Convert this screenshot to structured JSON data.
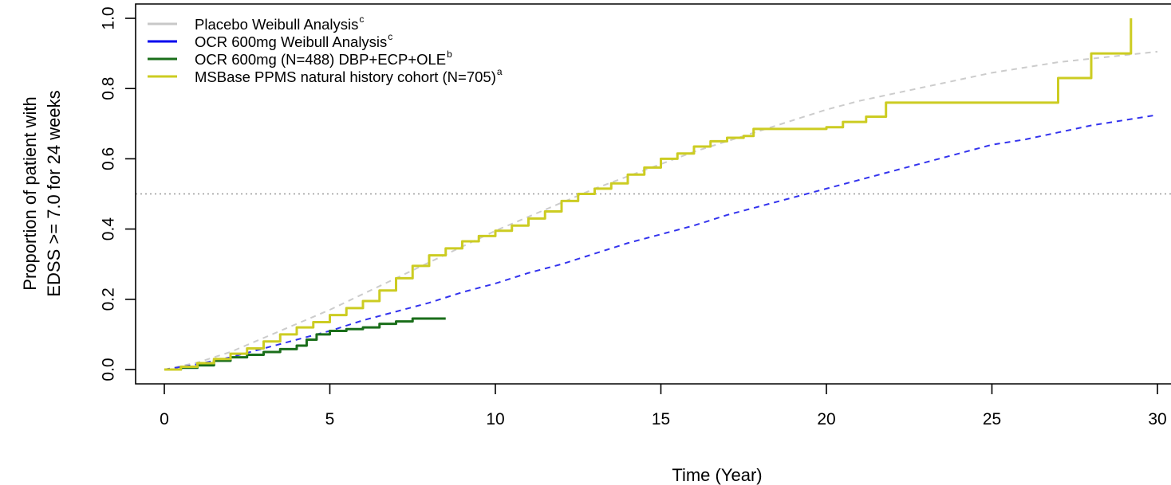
{
  "chart_data": {
    "type": "line",
    "title": "",
    "xlabel": "Time (Year)",
    "ylabel_lines": [
      "Proportion of patient with",
      "EDSS >= 7.0 for 24 weeks"
    ],
    "xlim": [
      0,
      30
    ],
    "ylim": [
      0,
      1
    ],
    "x_ticks": [
      0,
      5,
      10,
      15,
      20,
      25,
      30
    ],
    "y_ticks": [
      0.0,
      0.2,
      0.4,
      0.6,
      0.8,
      1.0
    ],
    "x_tick_labels": [
      "0",
      "5",
      "10",
      "15",
      "20",
      "25",
      "30"
    ],
    "y_tick_labels": [
      "0.0",
      "0.2",
      "0.4",
      "0.6",
      "0.8",
      "1.0"
    ],
    "grid": false,
    "legend_position": "top-left",
    "reference_line": {
      "y": 0.5,
      "style": "dotted",
      "color": "#999999"
    },
    "legend": [
      {
        "label": "Placebo Weibull Analysis",
        "sup": "c",
        "color": "#c8c8c8"
      },
      {
        "label": "OCR 600mg Weibull Analysis",
        "sup": "c",
        "color": "#0000ee"
      },
      {
        "label": "OCR 600mg (N=488) DBP+ECP+OLE",
        "sup": "b",
        "color": "#1a6e1a"
      },
      {
        "label": "MSBase PPMS natural history cohort (N=705)",
        "sup": "a",
        "color": "#cccc22"
      }
    ],
    "series": [
      {
        "name": "Placebo Weibull Analysis",
        "style": "dashed",
        "color": "#cccccc",
        "x": [
          0,
          1,
          2,
          3,
          4,
          5,
          6,
          7,
          8,
          9,
          10,
          11,
          12,
          13,
          14,
          15,
          16,
          17,
          18,
          19,
          20,
          21,
          22,
          23,
          24,
          25,
          26,
          27,
          28,
          29,
          30
        ],
        "y": [
          0.0,
          0.02,
          0.05,
          0.09,
          0.13,
          0.17,
          0.215,
          0.26,
          0.305,
          0.35,
          0.395,
          0.435,
          0.475,
          0.515,
          0.55,
          0.585,
          0.62,
          0.65,
          0.68,
          0.71,
          0.74,
          0.765,
          0.785,
          0.805,
          0.825,
          0.845,
          0.86,
          0.875,
          0.885,
          0.895,
          0.905
        ]
      },
      {
        "name": "OCR 600mg Weibull Analysis",
        "style": "dashed",
        "color": "#3333ee",
        "x": [
          0,
          1,
          2,
          3,
          4,
          5,
          6,
          7,
          8,
          9,
          10,
          11,
          12,
          13,
          14,
          15,
          16,
          17,
          18,
          19,
          20,
          21,
          22,
          23,
          24,
          25,
          26,
          27,
          28,
          29,
          30
        ],
        "y": [
          0.0,
          0.015,
          0.035,
          0.06,
          0.085,
          0.11,
          0.14,
          0.165,
          0.19,
          0.22,
          0.245,
          0.275,
          0.3,
          0.33,
          0.36,
          0.385,
          0.41,
          0.44,
          0.465,
          0.49,
          0.515,
          0.54,
          0.565,
          0.59,
          0.615,
          0.64,
          0.655,
          0.675,
          0.695,
          0.71,
          0.725
        ]
      },
      {
        "name": "OCR 600mg (N=488) DBP+ECP+OLE",
        "style": "step",
        "color": "#1a6e1a",
        "x": [
          0,
          0.5,
          1.0,
          1.5,
          2.0,
          2.5,
          3.0,
          3.5,
          4.0,
          4.3,
          4.6,
          5.0,
          5.5,
          6.0,
          6.5,
          7.0,
          7.5,
          8.0,
          8.5
        ],
        "y": [
          0.0,
          0.005,
          0.012,
          0.025,
          0.035,
          0.042,
          0.05,
          0.058,
          0.068,
          0.085,
          0.1,
          0.11,
          0.115,
          0.12,
          0.13,
          0.137,
          0.145,
          0.145,
          0.145
        ]
      },
      {
        "name": "MSBase PPMS natural history cohort (N=705)",
        "style": "step",
        "color": "#cccc22",
        "x": [
          0,
          0.5,
          1.0,
          1.5,
          2.0,
          2.5,
          3.0,
          3.5,
          4.0,
          4.5,
          5.0,
          5.5,
          6.0,
          6.5,
          7.0,
          7.5,
          8.0,
          8.5,
          9.0,
          9.5,
          10.0,
          10.5,
          11.0,
          11.5,
          12.0,
          12.5,
          13.0,
          13.5,
          14.0,
          14.5,
          15.0,
          15.5,
          16.0,
          16.5,
          17.0,
          17.5,
          17.8,
          18.5,
          19.0,
          20.0,
          20.5,
          21.2,
          21.6,
          21.8,
          22.5,
          24.0,
          26.0,
          27.0,
          28.0,
          29.2
        ],
        "y": [
          0.0,
          0.008,
          0.018,
          0.03,
          0.045,
          0.06,
          0.08,
          0.1,
          0.12,
          0.135,
          0.155,
          0.175,
          0.195,
          0.225,
          0.26,
          0.295,
          0.325,
          0.345,
          0.365,
          0.38,
          0.395,
          0.41,
          0.43,
          0.45,
          0.48,
          0.5,
          0.515,
          0.53,
          0.555,
          0.575,
          0.6,
          0.615,
          0.635,
          0.65,
          0.66,
          0.665,
          0.685,
          0.685,
          0.685,
          0.69,
          0.705,
          0.72,
          0.72,
          0.76,
          0.76,
          0.76,
          0.76,
          0.83,
          0.9,
          1.0
        ]
      }
    ]
  }
}
